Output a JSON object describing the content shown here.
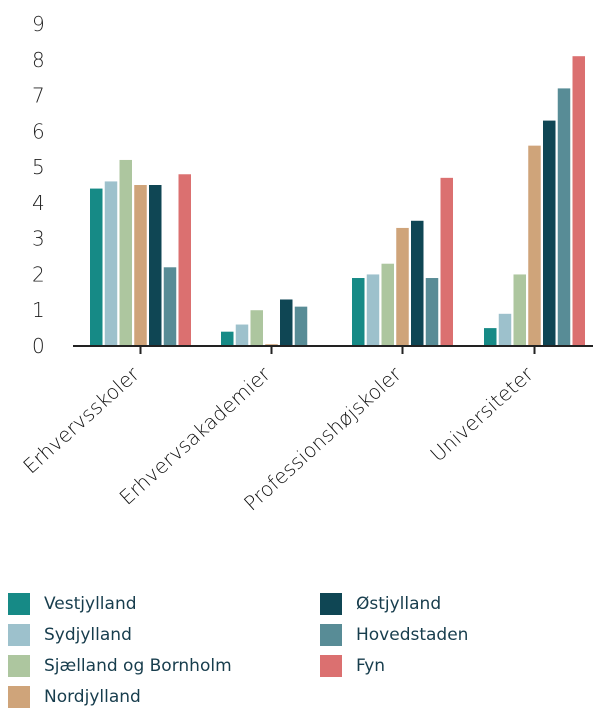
{
  "chart_data": {
    "type": "bar",
    "categories": [
      "Erhvervsskoler",
      "Erhvervsakademier",
      "Professionshøjskoler",
      "Universiteter"
    ],
    "series": [
      {
        "name": "Vestjylland",
        "color": "#168a86",
        "values": [
          4.4,
          0.4,
          1.9,
          0.5
        ]
      },
      {
        "name": "Sydjylland",
        "color": "#9dc1cc",
        "values": [
          4.6,
          0.6,
          2.0,
          0.9
        ]
      },
      {
        "name": "Sjælland og Bornholm",
        "color": "#adc69f",
        "values": [
          5.2,
          1.0,
          2.3,
          2.0
        ]
      },
      {
        "name": "Nordjylland",
        "color": "#cfa47a",
        "values": [
          4.5,
          0.05,
          3.3,
          5.6
        ]
      },
      {
        "name": "Østjylland",
        "color": "#0f4654",
        "values": [
          4.5,
          1.3,
          3.5,
          6.3
        ]
      },
      {
        "name": "Hovedstaden",
        "color": "#588c96",
        "values": [
          2.2,
          1.1,
          1.9,
          7.2
        ]
      },
      {
        "name": "Fyn",
        "color": "#db7070",
        "values": [
          4.8,
          0.0,
          4.7,
          8.1
        ]
      }
    ],
    "yticks": [
      "0",
      "1",
      "2",
      "3",
      "4",
      "5",
      "6",
      "7",
      "8",
      "9"
    ],
    "ylim": [
      0,
      9
    ],
    "grid": false,
    "legend_position": "bottom"
  }
}
